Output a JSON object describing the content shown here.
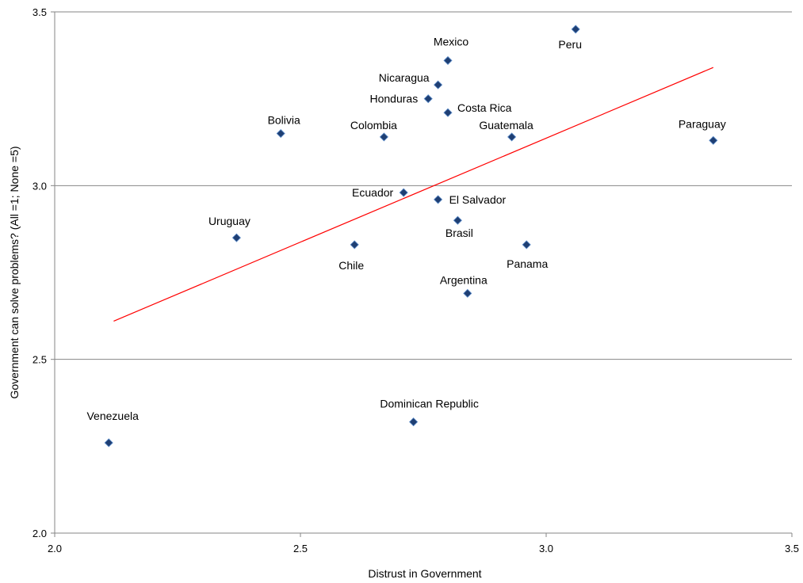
{
  "chart_data": {
    "type": "scatter",
    "title": "",
    "xlabel": "Distrust in Government",
    "ylabel": "Government can solve problems? (All =1; None =5)",
    "xlim": [
      2.0,
      3.5
    ],
    "ylim": [
      2.0,
      3.5
    ],
    "xticks": [
      2.0,
      2.5,
      3.0,
      3.5
    ],
    "yticks": [
      2.0,
      2.5,
      3.0,
      3.5
    ],
    "xtick_labels": [
      "2.0",
      "2.5",
      "3.0",
      "3.5"
    ],
    "ytick_labels": [
      "2.0",
      "2.5",
      "3.0",
      "3.5"
    ],
    "grid": "horizontal",
    "legend": "none",
    "marker_color": "#1F3F73",
    "trendline_color": "#FF0000",
    "points": [
      {
        "label": "Venezuela",
        "x": 2.11,
        "y": 2.26
      },
      {
        "label": "Uruguay",
        "x": 2.37,
        "y": 2.85
      },
      {
        "label": "Bolivia",
        "x": 2.46,
        "y": 3.15
      },
      {
        "label": "Chile",
        "x": 2.61,
        "y": 2.83
      },
      {
        "label": "Colombia",
        "x": 2.67,
        "y": 3.14
      },
      {
        "label": "Ecuador",
        "x": 2.71,
        "y": 2.98
      },
      {
        "label": "Dominican Republic",
        "x": 2.73,
        "y": 2.32
      },
      {
        "label": "Honduras",
        "x": 2.76,
        "y": 3.25
      },
      {
        "label": "Nicaragua",
        "x": 2.78,
        "y": 3.29
      },
      {
        "label": "El Salvador",
        "x": 2.78,
        "y": 2.96
      },
      {
        "label": "Mexico",
        "x": 2.8,
        "y": 3.36
      },
      {
        "label": "Costa Rica",
        "x": 2.8,
        "y": 3.21
      },
      {
        "label": "Brasil",
        "x": 2.82,
        "y": 2.9
      },
      {
        "label": "Argentina",
        "x": 2.84,
        "y": 2.69
      },
      {
        "label": "Guatemala",
        "x": 2.93,
        "y": 3.14
      },
      {
        "label": "Panama",
        "x": 2.96,
        "y": 2.83
      },
      {
        "label": "Peru",
        "x": 3.06,
        "y": 3.45
      },
      {
        "label": "Paraguay",
        "x": 3.34,
        "y": 3.13
      }
    ],
    "trendline": {
      "x": [
        2.12,
        3.34
      ],
      "y": [
        2.61,
        3.34
      ]
    }
  }
}
